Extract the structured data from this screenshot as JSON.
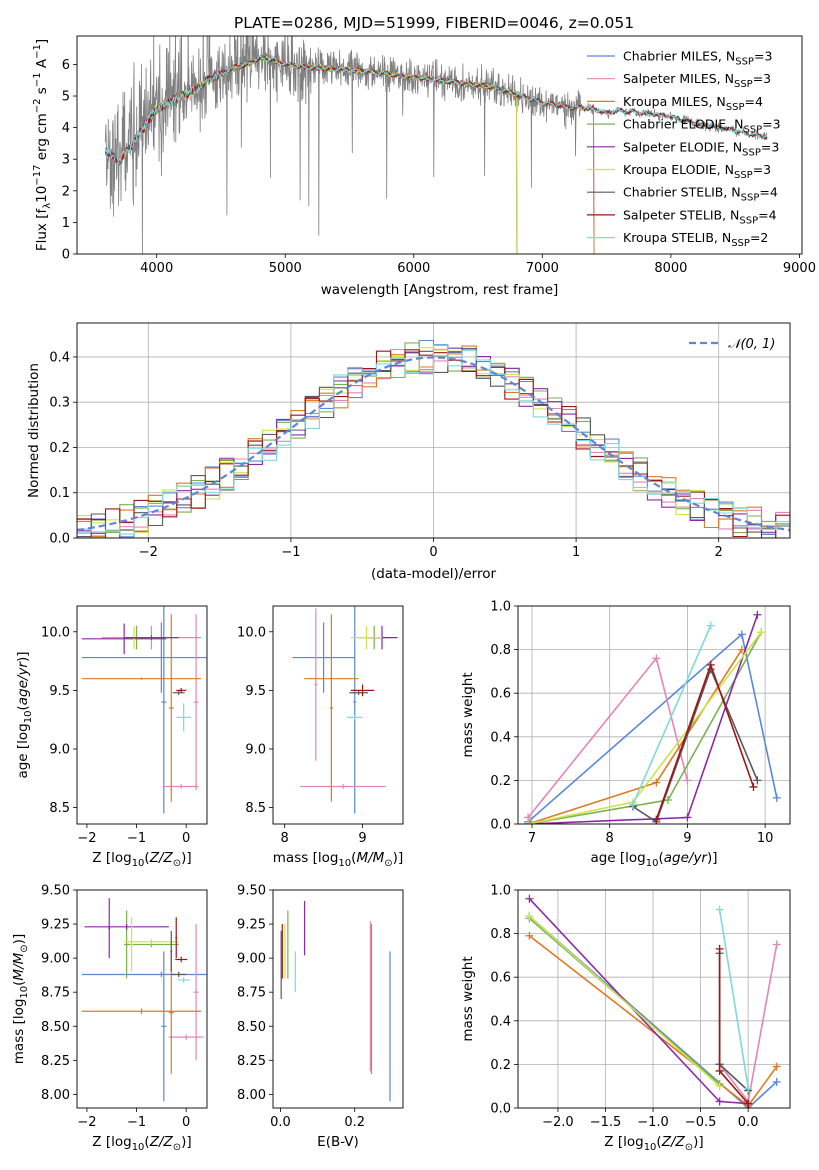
{
  "figure": {
    "title": "PLATE=0286, MJD=51999, FIBERID=0046, z=0.051"
  },
  "colors": {
    "Chabrier MILES": "#5b87d9",
    "Salpeter MILES": "#e585b5",
    "Kroupa MILES": "#e07a1f",
    "Chabrier ELODIE": "#7ab24f",
    "Salpeter ELODIE": "#8c2aa6",
    "Kroupa ELODIE": "#cfe34c",
    "Chabrier STELIB": "#5a5a5a",
    "Salpeter STELIB": "#a01515",
    "Kroupa STELIB": "#7fd9dc",
    "data": "#808080",
    "normal": "#5b87d9"
  },
  "chart_data": [
    {
      "id": "spectrum",
      "type": "line",
      "title": "PLATE=0286, MJD=51999, FIBERID=0046, z=0.051",
      "xlabel": "wavelength [Angstrom, rest frame]",
      "ylabel_parts": [
        "Flux [f",
        "λ",
        "10",
        "−17",
        " erg cm",
        "−2",
        " s",
        "−1",
        " A",
        "−1",
        "]"
      ],
      "xlim": [
        3380,
        9020
      ],
      "ylim": [
        0,
        6.9
      ],
      "xticks": [
        4000,
        5000,
        6000,
        7000,
        8000,
        9000
      ],
      "yticks": [
        0,
        1,
        2,
        3,
        4,
        5,
        6
      ],
      "legend_position": "right",
      "legend": [
        {
          "name": "Chabrier MILES",
          "nssp": "3"
        },
        {
          "name": "Salpeter MILES",
          "nssp": "3"
        },
        {
          "name": "Kroupa MILES",
          "nssp": "4"
        },
        {
          "name": "Chabrier ELODIE",
          "nssp": "3"
        },
        {
          "name": "Salpeter ELODIE",
          "nssp": "3"
        },
        {
          "name": "Kroupa ELODIE",
          "nssp": "3"
        },
        {
          "name": "Chabrier STELIB",
          "nssp": "4"
        },
        {
          "name": "Salpeter STELIB",
          "nssp": "4"
        },
        {
          "name": "Kroupa STELIB",
          "nssp": "2"
        }
      ],
      "continuum": {
        "x": [
          3600,
          3700,
          3800,
          3900,
          4000,
          4100,
          4200,
          4300,
          4400,
          4500,
          4600,
          4700,
          4800,
          4900,
          5000,
          5200,
          5400,
          5600,
          5800,
          6000,
          6200,
          6400,
          6600,
          6800,
          7000,
          7200,
          7400,
          7500,
          7600,
          7800,
          8000,
          8200,
          8400,
          8600,
          8750
        ],
        "y": [
          3.3,
          2.9,
          3.4,
          4.0,
          4.6,
          4.8,
          5.0,
          5.2,
          5.5,
          5.7,
          5.9,
          6.0,
          6.2,
          6.15,
          6.0,
          5.9,
          5.85,
          5.8,
          5.7,
          5.6,
          5.5,
          5.4,
          5.3,
          5.05,
          4.8,
          4.65,
          4.6,
          4.45,
          4.55,
          4.45,
          4.35,
          4.1,
          4.0,
          3.8,
          3.7
        ]
      },
      "data_range": {
        "from": 3600,
        "to": 8750
      },
      "model_ranges": {
        "Chabrier MILES": [
          3600,
          7400
        ],
        "Salpeter MILES": [
          3600,
          7400
        ],
        "Kroupa MILES": [
          3600,
          7400
        ],
        "Chabrier ELODIE": [
          3900,
          6800
        ],
        "Salpeter ELODIE": [
          3900,
          6800
        ],
        "Kroupa ELODIE": [
          3900,
          6800
        ],
        "Chabrier STELIB": [
          3600,
          8750
        ],
        "Salpeter STELIB": [
          3600,
          8750
        ],
        "Kroupa STELIB": [
          3600,
          8750
        ]
      }
    },
    {
      "id": "residuals",
      "type": "line",
      "xlabel": "(data-model)/error",
      "ylabel": "Normed distribution",
      "xlim": [
        -2.5,
        2.5
      ],
      "ylim": [
        0,
        0.475
      ],
      "xticks": [
        -2,
        -1,
        0,
        1,
        2
      ],
      "yticks": [
        0.0,
        0.1,
        0.2,
        0.3,
        0.4
      ],
      "grid": true,
      "legend_position": "top-right",
      "legend_label": "𝒩(0, 1)",
      "bin_width": 0.1,
      "bin_start": -2.5,
      "base_curve": "gaussian",
      "models": [
        "Chabrier MILES",
        "Salpeter MILES",
        "Kroupa MILES",
        "Chabrier ELODIE",
        "Salpeter ELODIE",
        "Kroupa ELODIE",
        "Chabrier STELIB",
        "Salpeter STELIB",
        "Kroupa STELIB"
      ]
    },
    {
      "id": "z-age",
      "type": "scatter",
      "xlabel": "Z [log10(Z/Z⊙)]",
      "ylabel": "age [log10(age/yr)]",
      "xlim": [
        -2.2,
        0.42
      ],
      "ylim": [
        8.36,
        10.22
      ],
      "xticks": [
        -2,
        -1,
        0
      ],
      "yticks": [
        8.5,
        9.0,
        9.5,
        10.0
      ],
      "points": [
        {
          "model": "Chabrier MILES",
          "x": -0.5,
          "xerr": 1.6,
          "y": 9.78,
          "yerr": 0.3
        },
        {
          "model": "Chabrier MILES",
          "x": -0.45,
          "xerr": 0.05,
          "y": 9.4,
          "yerr": 0.95
        },
        {
          "model": "Salpeter MILES",
          "x": -0.7,
          "xerr": 1.0,
          "y": 9.95,
          "yerr": 0.1
        },
        {
          "model": "Salpeter MILES",
          "x": -0.1,
          "xerr": 0.35,
          "y": 8.68,
          "yerr": 0.02
        },
        {
          "model": "Salpeter MILES",
          "x": 0.2,
          "xerr": 0.05,
          "y": 9.4,
          "yerr": 0.75
        },
        {
          "model": "Kroupa MILES",
          "x": -0.9,
          "xerr": 1.2,
          "y": 9.6,
          "yerr": 0.01
        },
        {
          "model": "Kroupa MILES",
          "x": -0.3,
          "xerr": 0.05,
          "y": 9.35,
          "yerr": 0.8
        },
        {
          "model": "Chabrier ELODIE",
          "x": -1.0,
          "xerr": 0.2,
          "y": 9.95,
          "yerr": 0.1
        },
        {
          "model": "Salpeter ELODIE",
          "x": -1.25,
          "xerr": 0.85,
          "y": 9.94,
          "yerr": 0.13
        },
        {
          "model": "Kroupa ELODIE",
          "x": -1.05,
          "xerr": 0.1,
          "y": 9.95,
          "yerr": 0.1
        },
        {
          "model": "Chabrier STELIB",
          "x": -0.15,
          "xerr": 0.12,
          "y": 9.48,
          "yerr": 0.02
        },
        {
          "model": "Chabrier STELIB",
          "x": -0.7,
          "xerr": 0.55,
          "y": 9.95,
          "yerr": 0.02
        },
        {
          "model": "Salpeter STELIB",
          "x": -0.1,
          "xerr": 0.1,
          "y": 9.5,
          "yerr": 0.02
        },
        {
          "model": "Kroupa STELIB",
          "x": -0.05,
          "xerr": 0.15,
          "y": 9.27,
          "yerr": 0.12
        }
      ]
    },
    {
      "id": "mass-age",
      "type": "scatter",
      "xlabel": "mass [log10(M/M⊙)]",
      "xlim": [
        7.85,
        9.52
      ],
      "ylim": [
        8.36,
        10.22
      ],
      "xticks": [
        8,
        9
      ],
      "yticks": [
        8.5,
        9.0,
        9.5,
        10.0
      ],
      "points": [
        {
          "model": "Chabrier MILES",
          "x": 8.5,
          "xerr": 0.4,
          "y": 9.78,
          "yerr": 0.3
        },
        {
          "model": "Chabrier MILES",
          "x": 8.9,
          "xerr": 0.02,
          "y": 9.4,
          "yerr": 0.95
        },
        {
          "model": "Salpeter MILES",
          "x": 8.4,
          "xerr": 0.02,
          "y": 9.55,
          "yerr": 0.65
        },
        {
          "model": "Salpeter MILES",
          "x": 8.75,
          "xerr": 0.55,
          "y": 8.68,
          "yerr": 0.02
        },
        {
          "model": "Kroupa MILES",
          "x": 8.6,
          "xerr": 0.35,
          "y": 9.6,
          "yerr": 0.02
        },
        {
          "model": "Kroupa MILES",
          "x": 8.6,
          "xerr": 0.02,
          "y": 9.35,
          "yerr": 0.8
        },
        {
          "model": "Chabrier ELODIE",
          "x": 9.15,
          "xerr": 0.2,
          "y": 9.95,
          "yerr": 0.1
        },
        {
          "model": "Salpeter ELODIE",
          "x": 9.25,
          "xerr": 0.2,
          "y": 9.95,
          "yerr": 0.1
        },
        {
          "model": "Kroupa ELODIE",
          "x": 9.05,
          "xerr": 0.2,
          "y": 9.95,
          "yerr": 0.1
        },
        {
          "model": "Chabrier STELIB",
          "x": 8.95,
          "xerr": 0.12,
          "y": 9.48,
          "yerr": 0.02
        },
        {
          "model": "Salpeter STELIB",
          "x": 9.0,
          "xerr": 0.15,
          "y": 9.5,
          "yerr": 0.05
        },
        {
          "model": "Kroupa STELIB",
          "x": 8.9,
          "xerr": 0.1,
          "y": 9.27,
          "yerr": 0.02
        }
      ]
    },
    {
      "id": "age-weight",
      "type": "line",
      "xlabel": "age [log10(age/yr)]",
      "ylabel": "mass weight",
      "xlim": [
        6.82,
        10.32
      ],
      "ylim": [
        0,
        1.0
      ],
      "xticks": [
        7,
        8,
        9,
        10
      ],
      "yticks": [
        0.0,
        0.2,
        0.4,
        0.6,
        0.8,
        1.0
      ],
      "grid": true,
      "series": [
        {
          "model": "Chabrier MILES",
          "x": [
            6.95,
            9.7,
            10.15
          ],
          "y": [
            0.01,
            0.87,
            0.12
          ]
        },
        {
          "model": "Salpeter MILES",
          "x": [
            6.95,
            8.6,
            9.0
          ],
          "y": [
            0.03,
            0.76,
            0.2
          ]
        },
        {
          "model": "Kroupa MILES",
          "x": [
            6.95,
            8.6,
            9.7
          ],
          "y": [
            0.0,
            0.19,
            0.8
          ]
        },
        {
          "model": "Chabrier ELODIE",
          "x": [
            6.95,
            8.75,
            9.95
          ],
          "y": [
            0.0,
            0.11,
            0.88
          ]
        },
        {
          "model": "Salpeter ELODIE",
          "x": [
            6.95,
            9.0,
            9.9
          ],
          "y": [
            0.0,
            0.03,
            0.96
          ]
        },
        {
          "model": "Kroupa ELODIE",
          "x": [
            6.95,
            8.3,
            9.95
          ],
          "y": [
            0.0,
            0.1,
            0.88
          ]
        },
        {
          "model": "Chabrier STELIB",
          "x": [
            8.3,
            8.6,
            9.3,
            9.9
          ],
          "y": [
            0.08,
            0.01,
            0.71,
            0.2
          ]
        },
        {
          "model": "Salpeter STELIB",
          "x": [
            8.6,
            9.3,
            9.85
          ],
          "y": [
            0.02,
            0.73,
            0.17
          ]
        },
        {
          "model": "Kroupa STELIB",
          "x": [
            8.3,
            9.3
          ],
          "y": [
            0.09,
            0.91
          ]
        }
      ]
    },
    {
      "id": "z-mass",
      "type": "scatter",
      "xlabel": "Z [log10(Z/Z⊙)]",
      "ylabel": "mass [log10(M/M⊙)]",
      "xlim": [
        -2.2,
        0.42
      ],
      "ylim": [
        7.9,
        9.5
      ],
      "xticks": [
        -2,
        -1,
        0
      ],
      "yticks": [
        8.0,
        8.25,
        8.5,
        8.75,
        9.0,
        9.25,
        9.5
      ],
      "points": [
        {
          "model": "Chabrier MILES",
          "x": -0.5,
          "xerr": 1.6,
          "y": 8.88,
          "yerr": 0.02
        },
        {
          "model": "Chabrier MILES",
          "x": -0.45,
          "xerr": 0.05,
          "y": 8.5,
          "yerr": 0.55
        },
        {
          "model": "Salpeter MILES",
          "x": 0.0,
          "xerr": 0.35,
          "y": 8.42,
          "yerr": 0.02
        },
        {
          "model": "Salpeter MILES",
          "x": 0.2,
          "xerr": 0.05,
          "y": 8.75,
          "yerr": 0.5
        },
        {
          "model": "Kroupa MILES",
          "x": -0.9,
          "xerr": 1.2,
          "y": 8.61,
          "yerr": 0.02
        },
        {
          "model": "Kroupa MILES",
          "x": -0.3,
          "xerr": 0.05,
          "y": 8.6,
          "yerr": 0.45
        },
        {
          "model": "Chabrier ELODIE",
          "x": -0.7,
          "xerr": 0.55,
          "y": 9.1,
          "yerr": 0.02
        },
        {
          "model": "Chabrier ELODIE",
          "x": -1.2,
          "xerr": 0.02,
          "y": 9.1,
          "yerr": 0.25
        },
        {
          "model": "Salpeter ELODIE",
          "x": -1.2,
          "xerr": 0.85,
          "y": 9.23,
          "yerr": 0.02
        },
        {
          "model": "Salpeter ELODIE",
          "x": -1.55,
          "xerr": 0.02,
          "y": 9.22,
          "yerr": 0.22
        },
        {
          "model": "Kroupa ELODIE",
          "x": -0.7,
          "xerr": 0.55,
          "y": 9.12,
          "yerr": 0.02
        },
        {
          "model": "Kroupa ELODIE",
          "x": -1.1,
          "xerr": 0.02,
          "y": 9.1,
          "yerr": 0.2
        },
        {
          "model": "Chabrier STELIB",
          "x": -0.15,
          "xerr": 0.15,
          "y": 8.88,
          "yerr": 0.02
        },
        {
          "model": "Chabrier STELIB",
          "x": -0.3,
          "xerr": 0.02,
          "y": 9.05,
          "yerr": 0.15
        },
        {
          "model": "Salpeter STELIB",
          "x": -0.1,
          "xerr": 0.12,
          "y": 8.99,
          "yerr": 0.02
        },
        {
          "model": "Salpeter STELIB",
          "x": -0.2,
          "xerr": 0.02,
          "y": 9.15,
          "yerr": 0.15
        },
        {
          "model": "Kroupa STELIB",
          "x": -0.05,
          "xerr": 0.12,
          "y": 8.84,
          "yerr": 0.02
        }
      ]
    },
    {
      "id": "ebv-mass",
      "type": "scatter",
      "xlabel": "E(B-V)",
      "xlim": [
        -0.02,
        0.33
      ],
      "ylim": [
        7.9,
        9.5
      ],
      "xticks": [
        0.0,
        0.2
      ],
      "yticks": [
        8.0,
        8.25,
        8.5,
        8.75,
        9.0,
        9.25,
        9.5
      ],
      "points": [
        {
          "model": "Chabrier MILES",
          "x": 0.295,
          "xerr": 0.0,
          "y": 8.5,
          "yerr": 0.55
        },
        {
          "model": "Salpeter MILES",
          "x": 0.242,
          "xerr": 0.0,
          "y": 8.72,
          "yerr": 0.55
        },
        {
          "model": "Kroupa MILES",
          "x": 0.245,
          "xerr": 0.0,
          "y": 8.7,
          "yerr": 0.55
        },
        {
          "model": "Chabrier ELODIE",
          "x": 0.02,
          "xerr": 0.0,
          "y": 9.1,
          "yerr": 0.25
        },
        {
          "model": "Salpeter ELODIE",
          "x": 0.065,
          "xerr": 0.0,
          "y": 9.22,
          "yerr": 0.2
        },
        {
          "model": "Kroupa ELODIE",
          "x": 0.012,
          "xerr": 0.0,
          "y": 9.05,
          "yerr": 0.2
        },
        {
          "model": "Chabrier STELIB",
          "x": 0.002,
          "xerr": 0.0,
          "y": 8.95,
          "yerr": 0.25
        },
        {
          "model": "Salpeter STELIB",
          "x": 0.005,
          "xerr": 0.0,
          "y": 9.05,
          "yerr": 0.2
        },
        {
          "model": "Kroupa STELIB",
          "x": 0.04,
          "xerr": 0.0,
          "y": 8.9,
          "yerr": 0.15
        }
      ]
    },
    {
      "id": "z-weight",
      "type": "line",
      "xlabel": "Z [log10(Z/Z⊙)]",
      "ylabel": "mass weight",
      "xlim": [
        -2.42,
        0.44
      ],
      "ylim": [
        0,
        1.0
      ],
      "xticks": [
        -2.0,
        -1.5,
        -1.0,
        -0.5,
        0.0
      ],
      "yticks": [
        0.0,
        0.2,
        0.4,
        0.6,
        0.8,
        1.0
      ],
      "grid": true,
      "series": [
        {
          "model": "Chabrier MILES",
          "x": [
            -2.3,
            0.0,
            0.3
          ],
          "y": [
            0.88,
            0.0,
            0.12
          ]
        },
        {
          "model": "Salpeter MILES",
          "x": [
            -0.3,
            0.0,
            0.3
          ],
          "y": [
            0.2,
            0.03,
            0.75
          ]
        },
        {
          "model": "Kroupa MILES",
          "x": [
            -2.3,
            0.0,
            0.3
          ],
          "y": [
            0.79,
            0.01,
            0.19
          ]
        },
        {
          "model": "Chabrier ELODIE",
          "x": [
            -2.3,
            -0.3
          ],
          "y": [
            0.87,
            0.11
          ]
        },
        {
          "model": "Salpeter ELODIE",
          "x": [
            -2.3,
            -0.3,
            0.0
          ],
          "y": [
            0.96,
            0.03,
            0.02
          ]
        },
        {
          "model": "Kroupa ELODIE",
          "x": [
            -2.3,
            -0.3
          ],
          "y": [
            0.88,
            0.1
          ]
        },
        {
          "model": "Chabrier STELIB",
          "x": [
            -0.3,
            0.0
          ],
          "y": [
            0.2,
            0.08
          ]
        },
        {
          "model": "Chabrier STELIB",
          "x": [
            -0.3,
            -0.3
          ],
          "y": [
            0.71,
            0.2
          ]
        },
        {
          "model": "Salpeter STELIB",
          "x": [
            -0.3,
            -0.3,
            0.0
          ],
          "y": [
            0.73,
            0.17,
            0.02
          ]
        },
        {
          "model": "Kroupa STELIB",
          "x": [
            -0.3,
            0.0
          ],
          "y": [
            0.91,
            0.09
          ]
        }
      ]
    }
  ]
}
